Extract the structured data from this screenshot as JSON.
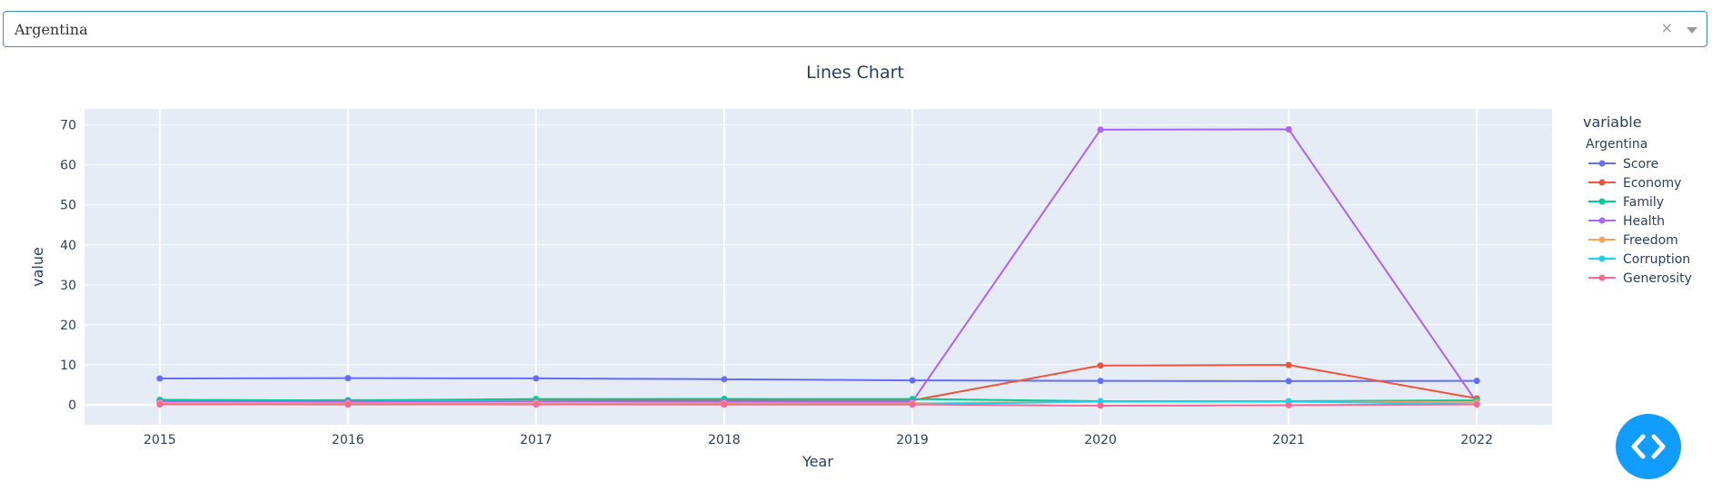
{
  "dropdown": {
    "selected": "Argentina",
    "clear_symbol": "×"
  },
  "chart_data": {
    "type": "line",
    "title": "Lines Chart",
    "xlabel": "Year",
    "ylabel": "value",
    "x": [
      "2015",
      "2016",
      "2017",
      "2018",
      "2019",
      "2020",
      "2021",
      "2022"
    ],
    "xlim": [
      2014.6,
      2022.4
    ],
    "ylim": [
      -5,
      74
    ],
    "yticks": [
      0,
      10,
      20,
      30,
      40,
      50,
      60,
      70
    ],
    "grid": true,
    "plot_bgcolor": "#e5ecf6",
    "legend": {
      "title": "variable",
      "group": "Argentina",
      "placement": "right"
    },
    "series": [
      {
        "name": "Score",
        "color": "#636efa",
        "values": [
          6.57,
          6.65,
          6.6,
          6.39,
          6.09,
          5.97,
          5.93,
          5.97
        ]
      },
      {
        "name": "Economy",
        "color": "#ef553b",
        "values": [
          1.05,
          1.15,
          1.19,
          1.07,
          1.09,
          9.81,
          9.96,
          1.59
        ]
      },
      {
        "name": "Family",
        "color": "#00cc96",
        "values": [
          1.24,
          1.08,
          1.44,
          1.47,
          1.43,
          0.9,
          0.9,
          1.1
        ]
      },
      {
        "name": "Health",
        "color": "#ab63fa",
        "values": [
          0.7,
          0.7,
          0.7,
          0.8,
          0.8,
          68.8,
          68.9,
          0.6
        ]
      },
      {
        "name": "Freedom",
        "color": "#ffa15a",
        "values": [
          0.44,
          0.37,
          0.47,
          0.39,
          0.36,
          0.8,
          0.8,
          0.6
        ]
      },
      {
        "name": "Corruption",
        "color": "#19d3f3",
        "values": [
          0.08,
          0.06,
          0.07,
          0.06,
          0.05,
          0.85,
          0.85,
          0.1
        ]
      },
      {
        "name": "Generosity",
        "color": "#ff6692",
        "values": [
          0.1,
          0.11,
          0.09,
          0.07,
          0.07,
          -0.2,
          -0.1,
          0.09
        ]
      }
    ]
  }
}
